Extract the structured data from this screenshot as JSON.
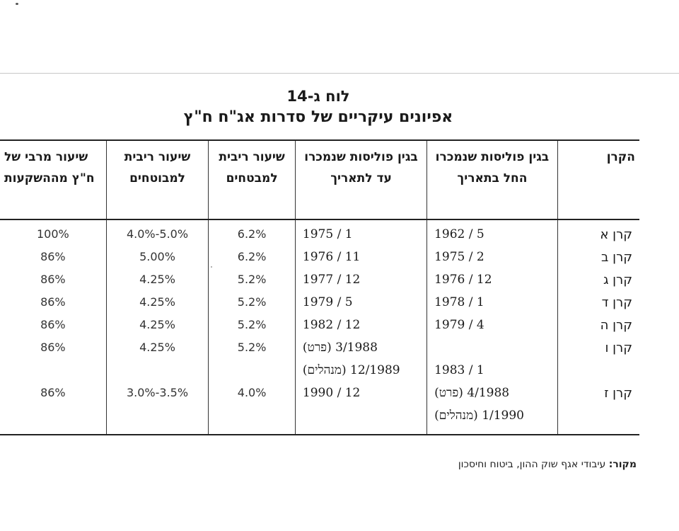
{
  "title": "לוח ג-14",
  "subtitle": "אפיונים עיקריים של סדרות אג\"ח ח\"ץ",
  "table": {
    "headers": [
      "הקרן",
      "בגין פוליסות שנמכרו החל בתאריך",
      "בגין פוליסות שנמכרו עד לתאריך",
      "שיעור ריבית למבטחים",
      "שיעור ריבית למבוטחים",
      "שיעור מרבי של ח\"ץ מההשקעות"
    ],
    "rows": [
      {
        "fund": "קרן א",
        "from": "5 / 1962",
        "until": "1 / 1975",
        "rate_insurers": "6.2%",
        "rate_insured": "5.0%-4.0%",
        "max_share": "100%"
      },
      {
        "fund": "קרן ב",
        "from": "2 / 1975",
        "until": "11 / 1976",
        "rate_insurers": "6.2%",
        "rate_insured": "5.00%",
        "max_share": "86%"
      },
      {
        "fund": "קרן ג",
        "from": "12 / 1976",
        "until": "12 / 1977",
        "rate_insurers": "5.2%",
        "rate_insured": "4.25%",
        "max_share": "86%"
      },
      {
        "fund": "קרן ד",
        "from": "1 / 1978",
        "until": "5 / 1979",
        "rate_insurers": "5.2%",
        "rate_insured": "4.25%",
        "max_share": "86%"
      },
      {
        "fund": "קרן ה",
        "from": "4 / 1979",
        "until": "12 / 1982",
        "rate_insurers": "5.2%",
        "rate_insured": "4.25%",
        "max_share": "86%"
      },
      {
        "fund": "קרן ו",
        "from": "",
        "until": "3/1988 (פרט)",
        "rate_insurers": "5.2%",
        "rate_insured": "4.25%",
        "max_share": "86%"
      },
      {
        "fund": "",
        "from": "1 / 1983",
        "until": "12/1989 (מנהלים)",
        "rate_insurers": "",
        "rate_insured": "",
        "max_share": ""
      },
      {
        "fund": "קרן ז",
        "from": "4/1988 (פרט)",
        "until": "12 / 1990",
        "rate_insurers": "4.0%",
        "rate_insured": "3.5%-3.0%",
        "max_share": "86%"
      },
      {
        "fund": "",
        "from": "1/1990 (מנהלים)",
        "until": "",
        "rate_insurers": "",
        "rate_insured": "",
        "max_share": ""
      }
    ]
  },
  "source": {
    "label": "מקור:",
    "text": "עיבודי אגף שוק ההון, ביטוח וחיסכון"
  }
}
